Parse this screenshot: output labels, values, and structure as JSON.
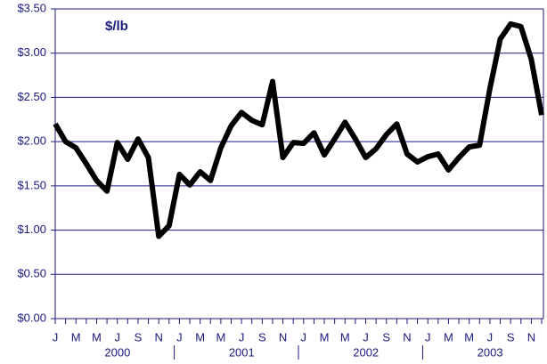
{
  "chart_data": {
    "type": "line",
    "annotation": "$/lb",
    "categories": [
      "J",
      null,
      "M",
      null,
      "M",
      null,
      "J",
      null,
      "S",
      null,
      "N",
      null,
      "J",
      null,
      "M",
      null,
      "M",
      null,
      "J",
      null,
      "S",
      null,
      "N",
      null,
      "J",
      null,
      "M",
      null,
      "M",
      null,
      "J",
      null,
      "S",
      null,
      "N",
      null,
      "J",
      null,
      "M",
      null,
      "M",
      null,
      "J",
      null,
      "S",
      null,
      "N",
      null
    ],
    "year_labels": [
      "2000",
      "2001",
      "2002",
      "2003"
    ],
    "series": [
      {
        "color": "#000000",
        "values": [
          2.2,
          2.0,
          1.93,
          1.75,
          1.56,
          1.44,
          1.99,
          1.8,
          2.03,
          1.82,
          0.93,
          1.05,
          1.63,
          1.51,
          1.66,
          1.56,
          1.93,
          2.18,
          2.33,
          2.24,
          2.19,
          2.68,
          1.82,
          1.99,
          1.98,
          2.1,
          1.85,
          2.03,
          2.22,
          2.03,
          1.82,
          1.92,
          2.08,
          2.2,
          1.86,
          1.77,
          1.83,
          1.86,
          1.68,
          1.82,
          1.94,
          1.96,
          2.6,
          3.16,
          3.33,
          3.3,
          2.93,
          2.3
        ]
      }
    ],
    "ylim": [
      0,
      3.5
    ],
    "yticks": [
      {
        "value": 0,
        "label": "$0.00"
      },
      {
        "value": 0.5,
        "label": "$0.50"
      },
      {
        "value": 1,
        "label": "$1.00"
      },
      {
        "value": 1.5,
        "label": "$1.50"
      },
      {
        "value": 2,
        "label": "$2.00"
      },
      {
        "value": 2.5,
        "label": "$2.50"
      },
      {
        "value": 3,
        "label": "$3.00"
      },
      {
        "value": 3.5,
        "label": "$3.50"
      }
    ],
    "grid": true
  }
}
